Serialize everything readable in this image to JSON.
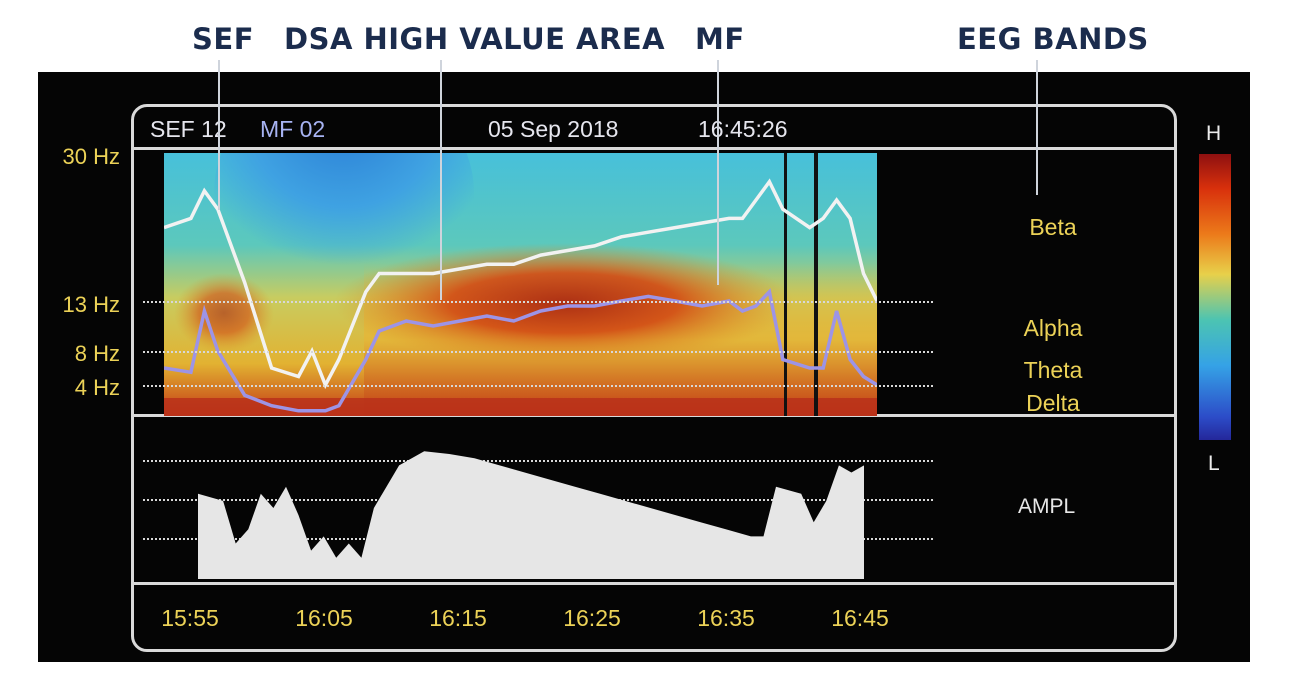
{
  "callouts": {
    "sef": "SEF",
    "dsa": "DSA HIGH VALUE AREA",
    "mf": "MF",
    "eeg_bands": "EEG BANDS"
  },
  "header": {
    "sef": "SEF 12",
    "mf": "MF 02",
    "date": "05 Sep 2018",
    "time": "16:45:26"
  },
  "bands": {
    "beta": "Beta",
    "alpha": "Alpha",
    "theta": "Theta",
    "delta": "Delta"
  },
  "ampl_label": "AMPL",
  "scale": {
    "high": "H",
    "low": "L"
  },
  "colors": {
    "callout_text": "#1b2c4d",
    "label_yellow": "#ecd257",
    "sef_line": "#f2f2f2",
    "mf_line": "#9d94e6",
    "ampl_fill": "#e6e6e6"
  },
  "chart_data": {
    "type": "heatmap",
    "title": "",
    "x_unit": "time",
    "x_tick_labels": [
      "15:55",
      "16:05",
      "16:15",
      "16:25",
      "16:35",
      "16:45"
    ],
    "x_range": [
      "15:52",
      "16:45"
    ],
    "y_tick_labels": [
      "30 Hz",
      "13 Hz",
      "8 Hz",
      "4 Hz"
    ],
    "y_ticks": [
      30,
      13,
      8,
      4
    ],
    "y_range": [
      1,
      30
    ],
    "gridlines_hz": [
      13,
      8,
      4
    ],
    "series": [
      {
        "name": "SEF",
        "color": "#f2f2f2",
        "x": [
          "15:52",
          "15:54",
          "15:55",
          "15:56",
          "15:58",
          "16:00",
          "16:02",
          "16:03",
          "16:04",
          "16:05",
          "16:07",
          "16:08",
          "16:10",
          "16:12",
          "16:14",
          "16:16",
          "16:18",
          "16:20",
          "16:22",
          "16:24",
          "16:26",
          "16:28",
          "16:30",
          "16:32",
          "16:34",
          "16:35",
          "16:36",
          "16:37",
          "16:38",
          "16:40",
          "16:41",
          "16:42",
          "16:43",
          "16:44",
          "16:45"
        ],
        "values": [
          21,
          22,
          25,
          23,
          15,
          6,
          5,
          8,
          4,
          7,
          14,
          16,
          16,
          16,
          16.5,
          17,
          17,
          18,
          18.5,
          19,
          20,
          20.5,
          21,
          21.5,
          22,
          22,
          24,
          26,
          23,
          21,
          22,
          24,
          22,
          16,
          13
        ]
      },
      {
        "name": "MF",
        "color": "#9d94e6",
        "x": [
          "15:52",
          "15:54",
          "15:55",
          "15:56",
          "15:58",
          "16:00",
          "16:02",
          "16:04",
          "16:05",
          "16:07",
          "16:08",
          "16:10",
          "16:12",
          "16:14",
          "16:16",
          "16:18",
          "16:20",
          "16:22",
          "16:24",
          "16:26",
          "16:28",
          "16:30",
          "16:32",
          "16:34",
          "16:35",
          "16:36",
          "16:37",
          "16:38",
          "16:40",
          "16:41",
          "16:42",
          "16:43",
          "16:44",
          "16:45"
        ],
        "values": [
          6,
          5.5,
          12,
          8,
          3,
          2,
          1.5,
          1.5,
          2,
          7,
          10,
          11,
          10.5,
          11,
          11.5,
          11,
          12,
          12.5,
          12.5,
          13,
          13.5,
          13,
          12.5,
          13,
          12,
          12.5,
          14,
          7,
          6,
          6,
          12,
          7,
          5,
          4
        ]
      }
    ],
    "ampl_series": {
      "x": [
        "15:52",
        "15:54",
        "15:55",
        "15:56",
        "15:57",
        "15:58",
        "15:59",
        "16:00",
        "16:01",
        "16:02",
        "16:03",
        "16:04",
        "16:05",
        "16:06",
        "16:08",
        "16:10",
        "16:12",
        "16:14",
        "16:16",
        "16:18",
        "16:20",
        "16:22",
        "16:24",
        "16:26",
        "16:28",
        "16:30",
        "16:32",
        "16:34",
        "16:36",
        "16:37",
        "16:38",
        "16:40",
        "16:41",
        "16:42",
        "16:43",
        "16:44",
        "16:45"
      ],
      "values": [
        0.6,
        0.55,
        0.25,
        0.35,
        0.6,
        0.5,
        0.65,
        0.45,
        0.2,
        0.3,
        0.15,
        0.25,
        0.15,
        0.5,
        0.8,
        0.9,
        0.88,
        0.85,
        0.8,
        0.75,
        0.7,
        0.65,
        0.6,
        0.55,
        0.5,
        0.45,
        0.4,
        0.35,
        0.3,
        0.3,
        0.65,
        0.6,
        0.4,
        0.55,
        0.8,
        0.75,
        0.8
      ],
      "ylim": [
        0,
        1
      ]
    },
    "color_scale": {
      "high": "H",
      "low": "L"
    }
  }
}
